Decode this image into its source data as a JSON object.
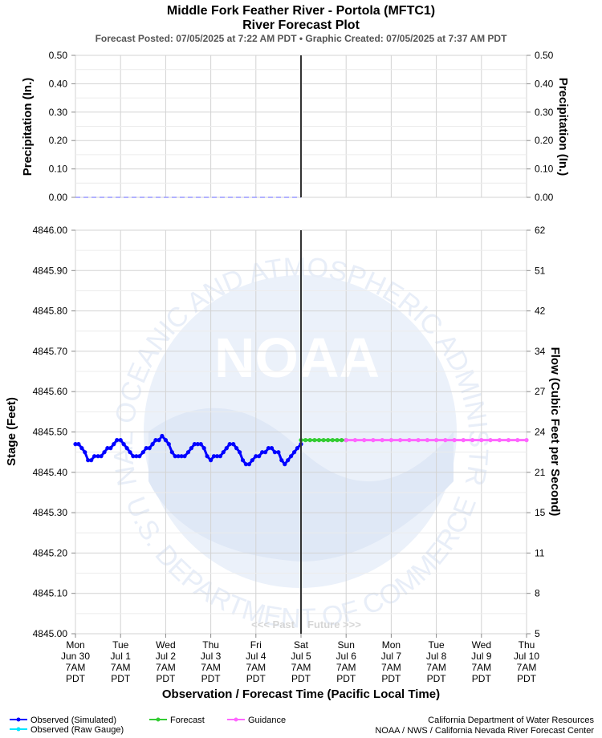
{
  "header": {
    "title_line1": "Middle Fork Feather River - Portola (MFTC1)",
    "title_line2": "River Forecast Plot",
    "subtitle": "Forecast Posted: 07/05/2025 at 7:22 AM PDT  •  Graphic Created: 07/05/2025 at 7:37 AM PDT"
  },
  "labels": {
    "precip_left": "Precipitation (In.)",
    "precip_right": "Precipitation (In.)",
    "stage": "Stage (Feet)",
    "flow": "Flow (Cubic Feet per Second)",
    "xaxis": "Observation / Forecast Time (Pacific Local Time)",
    "past": "<<< Past",
    "future": "Future >>>"
  },
  "legend": {
    "observed_sim": "Observed (Simulated)",
    "observed_raw": "Observed (Raw Gauge)",
    "forecast": "Forecast",
    "guidance": "Guidance"
  },
  "credits": {
    "line1": "California Department of Water Resources",
    "line2": "NOAA / NWS / California Nevada River Forecast Center"
  },
  "watermark": {
    "logo": "NOAA",
    "ring_top": "NATIONAL OCEANIC AND ATMOSPHERIC ADMINISTRATION",
    "ring_bottom": "U.S. DEPARTMENT OF COMMERCE"
  },
  "colors": {
    "observed_sim": "#0000ff",
    "observed_raw": "#00e5ff",
    "forecast": "#33cc33",
    "guidance": "#ff66ff",
    "now_line": "#333333",
    "grid": "#d3d3d3",
    "watermark": "#e6eef9"
  },
  "chart_data": [
    {
      "type": "line",
      "name": "precipitation",
      "ylim": [
        0,
        0.5
      ],
      "yticks": [
        "0.00",
        "0.10",
        "0.20",
        "0.30",
        "0.40",
        "0.50"
      ],
      "yticks_right": [
        "0.00",
        "0.10",
        "0.20",
        "0.30",
        "0.40",
        "0.50"
      ],
      "observed_x": [
        0,
        5
      ],
      "observed_y": [
        0.0,
        0.0
      ]
    },
    {
      "type": "line",
      "name": "stage",
      "ylim": [
        4845.0,
        4846.0
      ],
      "yticks": [
        "4845.00",
        "4845.10",
        "4845.20",
        "4845.30",
        "4845.40",
        "4845.50",
        "4845.60",
        "4845.70",
        "4845.80",
        "4845.90",
        "4846.00"
      ],
      "yticks_right": [
        "5",
        "8",
        "11",
        "15",
        "21",
        "24",
        "27",
        "34",
        "42",
        "51",
        "62"
      ],
      "xlim": [
        0,
        10
      ],
      "now_x": 5,
      "xticks": [
        {
          "day": "Mon",
          "date": "Jun 30",
          "time": "7AM",
          "tz": "PDT"
        },
        {
          "day": "Tue",
          "date": "Jul 1",
          "time": "7AM",
          "tz": "PDT"
        },
        {
          "day": "Wed",
          "date": "Jul 2",
          "time": "7AM",
          "tz": "PDT"
        },
        {
          "day": "Thu",
          "date": "Jul 3",
          "time": "7AM",
          "tz": "PDT"
        },
        {
          "day": "Fri",
          "date": "Jul 4",
          "time": "7AM",
          "tz": "PDT"
        },
        {
          "day": "Sat",
          "date": "Jul 5",
          "time": "7AM",
          "tz": "PDT"
        },
        {
          "day": "Sun",
          "date": "Jul 6",
          "time": "7AM",
          "tz": "PDT"
        },
        {
          "day": "Mon",
          "date": "Jul 7",
          "time": "7AM",
          "tz": "PDT"
        },
        {
          "day": "Tue",
          "date": "Jul 8",
          "time": "7AM",
          "tz": "PDT"
        },
        {
          "day": "Wed",
          "date": "Jul 9",
          "time": "7AM",
          "tz": "PDT"
        },
        {
          "day": "Thu",
          "date": "Jul 10",
          "time": "7AM",
          "tz": "PDT"
        }
      ],
      "series": [
        {
          "name": "Observed (Simulated)",
          "x": [
            0.0,
            0.07,
            0.14,
            0.21,
            0.28,
            0.35,
            0.42,
            0.5,
            0.57,
            0.64,
            0.71,
            0.78,
            0.85,
            0.92,
            1.0,
            1.07,
            1.14,
            1.21,
            1.28,
            1.35,
            1.42,
            1.5,
            1.57,
            1.64,
            1.71,
            1.78,
            1.85,
            1.92,
            2.0,
            2.07,
            2.14,
            2.21,
            2.28,
            2.35,
            2.42,
            2.5,
            2.57,
            2.64,
            2.71,
            2.78,
            2.85,
            2.92,
            3.0,
            3.07,
            3.14,
            3.21,
            3.28,
            3.35,
            3.42,
            3.5,
            3.57,
            3.64,
            3.71,
            3.78,
            3.85,
            3.92,
            4.0,
            4.07,
            4.14,
            4.21,
            4.28,
            4.35,
            4.42,
            4.5,
            4.57,
            4.64,
            4.71,
            4.78,
            4.85,
            4.92,
            5.0
          ],
          "y": [
            4845.47,
            4845.47,
            4845.46,
            4845.45,
            4845.43,
            4845.43,
            4845.44,
            4845.44,
            4845.44,
            4845.45,
            4845.46,
            4845.46,
            4845.47,
            4845.48,
            4845.48,
            4845.47,
            4845.46,
            4845.45,
            4845.44,
            4845.44,
            4845.44,
            4845.45,
            4845.46,
            4845.46,
            4845.47,
            4845.48,
            4845.48,
            4845.49,
            4845.48,
            4845.47,
            4845.45,
            4845.44,
            4845.44,
            4845.44,
            4845.44,
            4845.45,
            4845.46,
            4845.47,
            4845.47,
            4845.47,
            4845.46,
            4845.44,
            4845.43,
            4845.44,
            4845.44,
            4845.44,
            4845.45,
            4845.46,
            4845.47,
            4845.47,
            4845.46,
            4845.45,
            4845.43,
            4845.42,
            4845.42,
            4845.43,
            4845.44,
            4845.44,
            4845.45,
            4845.45,
            4845.46,
            4845.46,
            4845.45,
            4845.45,
            4845.43,
            4845.42,
            4845.43,
            4845.44,
            4845.45,
            4845.46,
            4845.47
          ]
        },
        {
          "name": "Forecast",
          "x": [
            5.0,
            5.1,
            5.2,
            5.3,
            5.4,
            5.5,
            5.6,
            5.7,
            5.8,
            5.9,
            6.0
          ],
          "y": [
            4845.48,
            4845.48,
            4845.48,
            4845.48,
            4845.48,
            4845.48,
            4845.48,
            4845.48,
            4845.48,
            4845.48,
            4845.48
          ]
        },
        {
          "name": "Guidance",
          "x": [
            6.0,
            6.2,
            6.4,
            6.6,
            6.8,
            7.0,
            7.2,
            7.4,
            7.6,
            7.8,
            8.0,
            8.2,
            8.4,
            8.6,
            8.8,
            9.0,
            9.2,
            9.4,
            9.6,
            9.8,
            10.0
          ],
          "y": [
            4845.48,
            4845.48,
            4845.48,
            4845.48,
            4845.48,
            4845.48,
            4845.48,
            4845.48,
            4845.48,
            4845.48,
            4845.48,
            4845.48,
            4845.48,
            4845.48,
            4845.48,
            4845.48,
            4845.48,
            4845.48,
            4845.48,
            4845.48,
            4845.48
          ]
        }
      ]
    }
  ]
}
